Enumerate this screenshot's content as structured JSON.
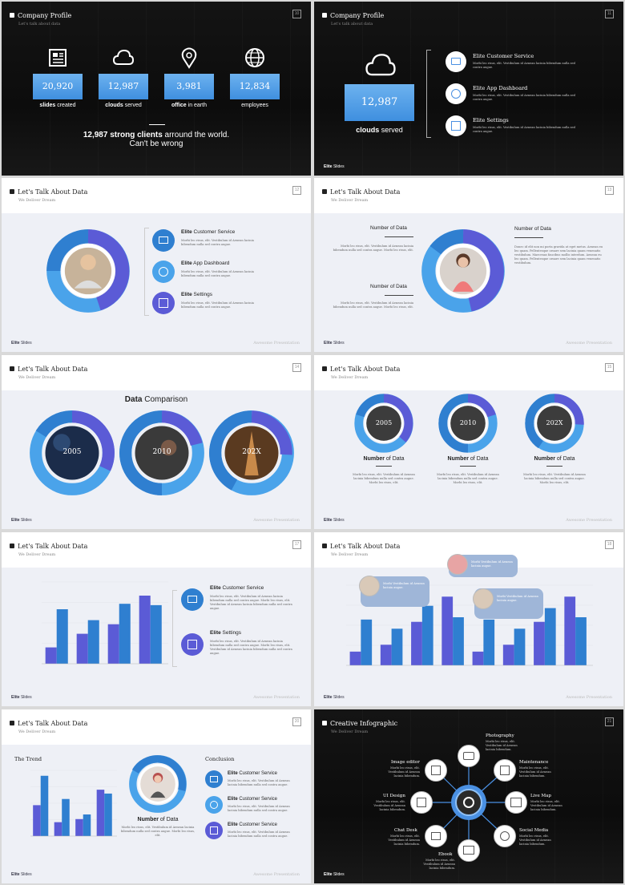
{
  "slide1": {
    "title": "Company Profile",
    "subtitle": "Let's talk about data",
    "page": "10",
    "stats": [
      {
        "value": "20,920",
        "bold": "slides",
        "rest": " created",
        "icon": "newspaper-icon"
      },
      {
        "value": "12,987",
        "bold": "clouds",
        "rest": " served",
        "icon": "cloud-icon"
      },
      {
        "value": "3,981",
        "bold": "office",
        "rest": " in earth",
        "icon": "location-pin-icon"
      },
      {
        "value": "12,834",
        "bold": "",
        "rest": "employees",
        "icon": "globe-icon"
      }
    ],
    "headline_bold": "12,987 strong clients",
    "headline_rest": " arround the world.",
    "headline_line2": "Can't be wrong"
  },
  "slide2": {
    "title": "Company Profile",
    "subtitle": "Let's talk about data",
    "page": "11",
    "stat_value": "12,987",
    "stat_bold": "clouds",
    "stat_rest": " served",
    "items": [
      {
        "title": "Elite Customer Service",
        "text": "Morbi leo risus, elit. Vestibulum id Aenean lacinia bibendum nulla sed contra augue."
      },
      {
        "title": "Elite App Dashboard",
        "text": "Morbi leo risus, elit. Vestibulum id Aenean lacinia bibendum nulla sed contra augue."
      },
      {
        "title": "Elite Settings",
        "text": "Morbi leo risus, elit. Vestibulum id Aenean lacinia bibendum nulla sed contra augue."
      }
    ],
    "footer_bold": "Elite",
    "footer_rest": " Slides"
  },
  "slide3": {
    "title": "Let's Talk About Data",
    "subtitle": "We Deliver Dream",
    "page": "12",
    "items": [
      {
        "bold": "Elite",
        "rest": " Customer Service",
        "text": "Morbi leo risus, elit. Vestibulum id Aenean lacinia bibendum nulla sed contra augue."
      },
      {
        "bold": "Elite",
        "rest": " App Dashboard",
        "text": "Morbi leo risus, elit. Vestibulum id Aenean lacinia bibendum nulla sed contra augue."
      },
      {
        "bold": "Elite",
        "rest": " Settings",
        "text": "Morbi leo risus, elit. Vestibulum id Aenean lacinia bibendum nulla sed contra augue."
      }
    ],
    "footer_bold": "Elite",
    "footer_rest": " Slides",
    "footer_right": "Awesome Presentation"
  },
  "slide4": {
    "title": "Let's Talk About Data",
    "subtitle": "We Deliver Dream",
    "page": "13",
    "label1": "Number of Data",
    "label2": "Number of Data",
    "label3": "Number of Data",
    "text1": "Morbi leo risus, elit. Vestibulum id Aenean lacinia bibendum nulla sed contra augue. Morbi leo risus, elit.",
    "text2": "Morbi leo risus, elit. Vestibulum id Aenean lacinia bibendum nulla sed contra augue. Morbi leo risus, elit.",
    "text3": "Donec id elit non mi porta gravida at eget metus. Aenean eu leo quam. Pellentesque ornare sem lacinia quam venenatis vestibulum. Maecenas faucibus mollis interdum. Aenean eu leo quam. Pellentesque ornare sem lacinia quam venenatis vestibulum.",
    "footer_bold": "Elite",
    "footer_rest": " Slides",
    "footer_right": "Awesome Presentation"
  },
  "slide5": {
    "title": "Let's Talk About Data",
    "subtitle": "We Deliver Dream",
    "page": "14",
    "heading_bold": "Data",
    "heading_rest": " Comparison",
    "years": [
      "2005",
      "2010",
      "202X"
    ],
    "footer_bold": "Elite",
    "footer_rest": " Slides",
    "footer_right": "Awesome Presentation"
  },
  "slide6": {
    "title": "Let's Talk About Data",
    "subtitle": "We Deliver Dream",
    "page": "15",
    "years": [
      "2005",
      "2010",
      "202X"
    ],
    "label_bold": "Number",
    "label_rest": " of Data",
    "text": "Morbi leo risus, elit. Vestibulum id Aenean lacinia bibendum nulla sed contra augue. Morbi leo risus, elit.",
    "footer_bold": "Elite",
    "footer_rest": " Slides",
    "footer_right": "Awesome Presentation"
  },
  "slide7": {
    "title": "Let's Talk About Data",
    "subtitle": "We Deliver Dream",
    "page": "17",
    "items": [
      {
        "bold": "Elite",
        "rest": " Customer Service",
        "text": "Morbi leo risus, elit. Vestibulum id Aenean lacinia bibendum nulla sed contra augue. Morbi leo risus, elit. Vestibulum id Aenean lacinia bibendum nulla sed contra augue."
      },
      {
        "bold": "Elite",
        "rest": " Settings",
        "text": "Morbi leo risus, elit. Vestibulum id Aenean lacinia bibendum nulla sed contra augue. Morbi leo risus, elit. Vestibulum id Aenean lacinia bibendum nulla sed contra augue."
      }
    ],
    "footer_bold": "Elite",
    "footer_rest": " Slides",
    "footer_right": "Awesome Presentation"
  },
  "slide8": {
    "title": "Let's Talk About Data",
    "subtitle": "We Deliver Dream",
    "page": "18",
    "bubble_text": "Morbi Vestibulum id Aenean lacinia augue.",
    "footer_bold": "Elite",
    "footer_rest": " Slides",
    "footer_right": "Awesome Presentation"
  },
  "slide9": {
    "title": "Let's Talk About Data",
    "subtitle": "We Deliver Dream",
    "page": "20",
    "trend": "The Trend",
    "conclusion": "Conclusion",
    "label_bold": "Number",
    "label_rest": " of Data",
    "center_text": "Morbi leo risus, elit. Vestibulum id Aenean lacinia bibendum nulla sed contra augue. Morbi leo risus, elit.",
    "items": [
      {
        "bold": "Elite",
        "rest": " Customer Service",
        "text": "Morbi leo risus, elit. Vestibulum id Aenean lacinia bibendum nulla sed contra augue."
      },
      {
        "bold": "Elite",
        "rest": " Customer Service",
        "text": "Morbi leo risus, elit. Vestibulum id Aenean lacinia bibendum nulla sed contra augue."
      },
      {
        "bold": "Elite",
        "rest": " Customer Service",
        "text": "Morbi leo risus, elit. Vestibulum id Aenean lacinia bibendum nulla sed contra augue."
      }
    ],
    "footer_bold": "Elite",
    "footer_rest": " Slides",
    "footer_right": "Awesome Presentation"
  },
  "slide10": {
    "title": "Creative Infographic",
    "subtitle": "We Deliver Dream",
    "page": "21",
    "nodes": [
      {
        "label": "Photography",
        "text": "Morbi leo risus, elit. Vestibulum id Aenean lacinia bibendum.",
        "icon": "camera-icon"
      },
      {
        "label": "Maintenance",
        "text": "Morbi leo risus, elit. Vestibulum id Aenean lacinia bibendum.",
        "icon": "document-list-icon"
      },
      {
        "label": "Live Map",
        "text": "Morbi leo risus, elit. Vestibulum id Aenean lacinia bibendum.",
        "icon": "map-icon"
      },
      {
        "label": "Social Media",
        "text": "Morbi leo risus, elit. Vestibulum id Aenean lacinia bibendum.",
        "icon": "user-icon"
      },
      {
        "label": "Ebook",
        "text": "Morbi leo risus, elit. Vestibulum id Aenean lacinia bibendum.",
        "icon": "book-icon"
      },
      {
        "label": "Chat Desk",
        "text": "Morbi leo risus, elit. Vestibulum id Aenean lacinia bibendum.",
        "icon": "chat-icon"
      },
      {
        "label": "UI Design",
        "text": "Morbi leo risus, elit. Vestibulum id Aenean lacinia bibendum.",
        "icon": "crop-icon"
      },
      {
        "label": "Image editor",
        "text": "Morbi leo risus, elit. Vestibulum id Aenean lacinia bibendum.",
        "icon": "image-icon"
      }
    ],
    "footer_bold": "Elite",
    "footer_rest": " Slides"
  },
  "chart_data": [
    {
      "type": "bar",
      "categories": [
        "",
        "",
        "",
        ""
      ],
      "series": [
        {
          "values": [
            12,
            22,
            29,
            50
          ]
        },
        {
          "values": [
            40,
            32,
            44,
            43
          ]
        }
      ]
    },
    {
      "type": "bar",
      "categories": [
        "",
        "",
        "",
        "",
        "",
        "",
        "",
        ""
      ],
      "series": [
        {
          "values": [
            12,
            18,
            38,
            60,
            12,
            18,
            38,
            60
          ]
        },
        {
          "values": [
            40,
            32,
            52,
            42,
            40,
            32,
            50,
            42
          ]
        }
      ]
    },
    {
      "type": "bar",
      "categories": [
        "",
        "",
        "",
        ""
      ],
      "series": [
        {
          "values": [
            40,
            18,
            22,
            60
          ]
        },
        {
          "values": [
            78,
            48,
            28,
            55
          ]
        }
      ]
    }
  ]
}
